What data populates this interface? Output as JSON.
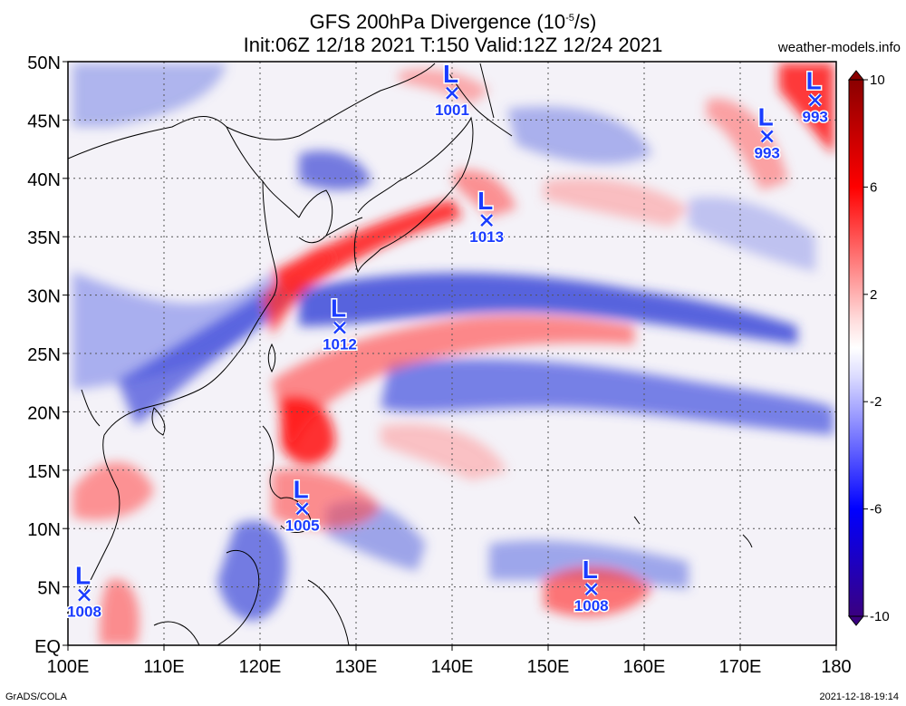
{
  "title": {
    "line1": "GFS 200hPa Divergence (10",
    "line1_sup": "-5",
    "line1_end": "/s)",
    "line2": "Init:06Z 12/18 2021 T:150 Valid:12Z 12/24 2021"
  },
  "site": "weather-models.info",
  "footer": {
    "left": "GrADS/COLA",
    "right": "2021-12-18-19:14"
  },
  "axes": {
    "lat_labels": [
      "50N",
      "45N",
      "40N",
      "35N",
      "30N",
      "25N",
      "20N",
      "15N",
      "10N",
      "5N",
      "EQ"
    ],
    "lon_labels": [
      "100E",
      "110E",
      "120E",
      "130E",
      "140E",
      "150E",
      "160E",
      "170E",
      "180"
    ]
  },
  "colorbar": {
    "labels": [
      "10",
      "6",
      "2",
      "-2",
      "-6",
      "-10"
    ]
  },
  "lows": [
    {
      "symbol": "L",
      "pressure": "1001",
      "lon": 140.0,
      "lat": 47.3
    },
    {
      "symbol": "L",
      "pressure": "1013",
      "lon": 143.6,
      "lat": 36.4
    },
    {
      "symbol": "L",
      "pressure": "1012",
      "lon": 128.3,
      "lat": 27.2
    },
    {
      "symbol": "L",
      "pressure": "1005",
      "lon": 124.4,
      "lat": 11.7
    },
    {
      "symbol": "L",
      "pressure": "1008",
      "lon": 101.7,
      "lat": 4.3
    },
    {
      "symbol": "L",
      "pressure": "1008",
      "lon": 154.5,
      "lat": 4.8
    },
    {
      "symbol": "L",
      "pressure": "993",
      "lon": 172.8,
      "lat": 43.6
    },
    {
      "symbol": "L",
      "pressure": "993",
      "lon": 177.8,
      "lat": 46.7
    }
  ],
  "colors": {
    "low_marker": "#1a3cff",
    "positive": "#e8000b",
    "negative": "#1a1aff"
  }
}
